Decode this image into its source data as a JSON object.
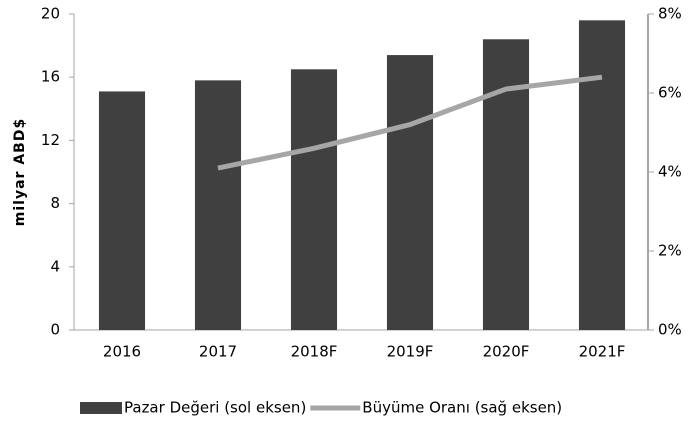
{
  "chart_data": {
    "type": "bar",
    "categories": [
      "2016",
      "2017",
      "2018F",
      "2019F",
      "2020F",
      "2021F"
    ],
    "series": [
      {
        "name": "Pazar Değeri (sol eksen)",
        "type": "bar",
        "color": "#404040",
        "values": [
          15.1,
          15.8,
          16.5,
          17.4,
          18.4,
          19.6
        ]
      },
      {
        "name": "Büyüme Oranı (sağ eksen)",
        "type": "line",
        "axis": "y2",
        "color": "#a6a6a6",
        "values": [
          null,
          4.1,
          4.6,
          5.2,
          6.1,
          6.4
        ]
      }
    ],
    "ylabel": "milyar ABD$",
    "ylim": [
      0,
      20
    ],
    "yticks": [
      0,
      4,
      8,
      12,
      16,
      20
    ],
    "y2lim": [
      0,
      8
    ],
    "y2ticks": [
      {
        "value": 0,
        "label": "0%"
      },
      {
        "value": 2,
        "label": "2%"
      },
      {
        "value": 4,
        "label": "4%"
      },
      {
        "value": 6,
        "label": "6%"
      },
      {
        "value": 8,
        "label": "8%"
      }
    ],
    "legend": "bottom"
  }
}
